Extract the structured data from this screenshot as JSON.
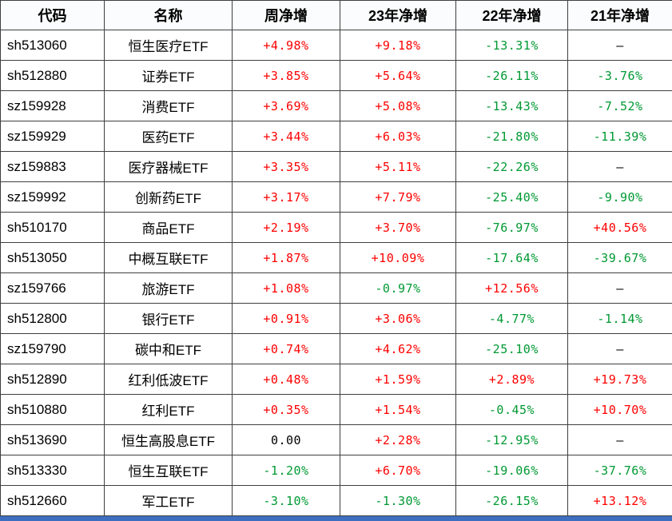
{
  "colors": {
    "up": "#fe0000",
    "down": "#009933",
    "flat": "#000000",
    "frame": "#3d6ec0",
    "grid": "#3f3f3f"
  },
  "table": {
    "headers": [
      "代码",
      "名称",
      "周净增",
      "23年净增",
      "22年净增",
      "21年净增"
    ],
    "rows": [
      {
        "code": "sh513060",
        "name": "恒生医疗ETF",
        "values": [
          {
            "text": "+4.98%",
            "trend": "up"
          },
          {
            "text": "+9.18%",
            "trend": "up"
          },
          {
            "text": "-13.31%",
            "trend": "down"
          },
          {
            "text": "—",
            "trend": "flat"
          }
        ]
      },
      {
        "code": "sh512880",
        "name": "证券ETF",
        "values": [
          {
            "text": "+3.85%",
            "trend": "up"
          },
          {
            "text": "+5.64%",
            "trend": "up"
          },
          {
            "text": "-26.11%",
            "trend": "down"
          },
          {
            "text": "-3.76%",
            "trend": "down"
          }
        ]
      },
      {
        "code": "sz159928",
        "name": "消费ETF",
        "values": [
          {
            "text": "+3.69%",
            "trend": "up"
          },
          {
            "text": "+5.08%",
            "trend": "up"
          },
          {
            "text": "-13.43%",
            "trend": "down"
          },
          {
            "text": "-7.52%",
            "trend": "down"
          }
        ]
      },
      {
        "code": "sz159929",
        "name": "医药ETF",
        "values": [
          {
            "text": "+3.44%",
            "trend": "up"
          },
          {
            "text": "+6.03%",
            "trend": "up"
          },
          {
            "text": "-21.80%",
            "trend": "down"
          },
          {
            "text": "-11.39%",
            "trend": "down"
          }
        ]
      },
      {
        "code": "sz159883",
        "name": "医疗器械ETF",
        "values": [
          {
            "text": "+3.35%",
            "trend": "up"
          },
          {
            "text": "+5.11%",
            "trend": "up"
          },
          {
            "text": "-22.26%",
            "trend": "down"
          },
          {
            "text": "—",
            "trend": "flat"
          }
        ]
      },
      {
        "code": "sz159992",
        "name": "创新药ETF",
        "values": [
          {
            "text": "+3.17%",
            "trend": "up"
          },
          {
            "text": "+7.79%",
            "trend": "up"
          },
          {
            "text": "-25.40%",
            "trend": "down"
          },
          {
            "text": "-9.90%",
            "trend": "down"
          }
        ]
      },
      {
        "code": "sh510170",
        "name": "商品ETF",
        "values": [
          {
            "text": "+2.19%",
            "trend": "up"
          },
          {
            "text": "+3.70%",
            "trend": "up"
          },
          {
            "text": "-76.97%",
            "trend": "down"
          },
          {
            "text": "+40.56%",
            "trend": "up"
          }
        ]
      },
      {
        "code": "sh513050",
        "name": "中概互联ETF",
        "values": [
          {
            "text": "+1.87%",
            "trend": "up"
          },
          {
            "text": "+10.09%",
            "trend": "up"
          },
          {
            "text": "-17.64%",
            "trend": "down"
          },
          {
            "text": "-39.67%",
            "trend": "down"
          }
        ]
      },
      {
        "code": "sz159766",
        "name": "旅游ETF",
        "values": [
          {
            "text": "+1.08%",
            "trend": "up"
          },
          {
            "text": "-0.97%",
            "trend": "down"
          },
          {
            "text": "+12.56%",
            "trend": "up"
          },
          {
            "text": "—",
            "trend": "flat"
          }
        ]
      },
      {
        "code": "sh512800",
        "name": "银行ETF",
        "values": [
          {
            "text": "+0.91%",
            "trend": "up"
          },
          {
            "text": "+3.06%",
            "trend": "up"
          },
          {
            "text": "-4.77%",
            "trend": "down"
          },
          {
            "text": "-1.14%",
            "trend": "down"
          }
        ]
      },
      {
        "code": "sz159790",
        "name": "碳中和ETF",
        "values": [
          {
            "text": "+0.74%",
            "trend": "up"
          },
          {
            "text": "+4.62%",
            "trend": "up"
          },
          {
            "text": "-25.10%",
            "trend": "down"
          },
          {
            "text": "—",
            "trend": "flat"
          }
        ]
      },
      {
        "code": "sh512890",
        "name": "红利低波ETF",
        "values": [
          {
            "text": "+0.48%",
            "trend": "up"
          },
          {
            "text": "+1.59%",
            "trend": "up"
          },
          {
            "text": "+2.89%",
            "trend": "up"
          },
          {
            "text": "+19.73%",
            "trend": "up"
          }
        ]
      },
      {
        "code": "sh510880",
        "name": "红利ETF",
        "values": [
          {
            "text": "+0.35%",
            "trend": "up"
          },
          {
            "text": "+1.54%",
            "trend": "up"
          },
          {
            "text": "-0.45%",
            "trend": "down"
          },
          {
            "text": "+10.70%",
            "trend": "up"
          }
        ]
      },
      {
        "code": "sh513690",
        "name": "恒生高股息ETF",
        "values": [
          {
            "text": "0.00",
            "trend": "flat"
          },
          {
            "text": "+2.28%",
            "trend": "up"
          },
          {
            "text": "-12.95%",
            "trend": "down"
          },
          {
            "text": "—",
            "trend": "flat"
          }
        ]
      },
      {
        "code": "sh513330",
        "name": "恒生互联ETF",
        "values": [
          {
            "text": "-1.20%",
            "trend": "down"
          },
          {
            "text": "+6.70%",
            "trend": "up"
          },
          {
            "text": "-19.06%",
            "trend": "down"
          },
          {
            "text": "-37.76%",
            "trend": "down"
          }
        ]
      },
      {
        "code": "sh512660",
        "name": "军工ETF",
        "values": [
          {
            "text": "-3.10%",
            "trend": "down"
          },
          {
            "text": "-1.30%",
            "trend": "down"
          },
          {
            "text": "-26.15%",
            "trend": "down"
          },
          {
            "text": "+13.12%",
            "trend": "up"
          }
        ]
      }
    ]
  }
}
